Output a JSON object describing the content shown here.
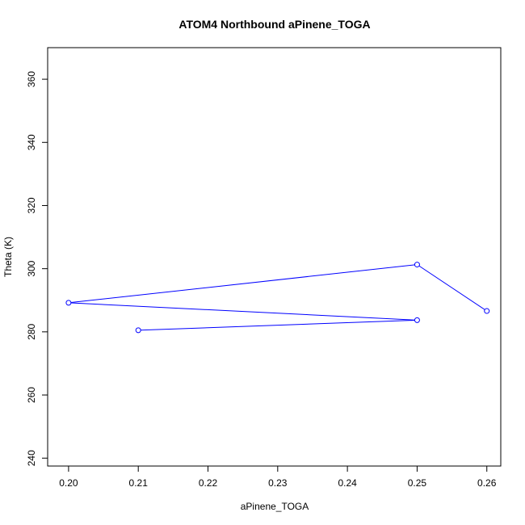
{
  "chart_data": {
    "type": "line",
    "title": "ATOM4 Northbound aPinene_TOGA",
    "xlabel": "aPinene_TOGA",
    "ylabel": "Theta (K)",
    "xlim": [
      0.197,
      0.262
    ],
    "ylim": [
      237.5,
      370.0
    ],
    "xticks": [
      "0.20",
      "0.21",
      "0.22",
      "0.23",
      "0.24",
      "0.25",
      "0.26"
    ],
    "yticks": [
      "240",
      "260",
      "280",
      "300",
      "320",
      "340",
      "360"
    ],
    "grid": false,
    "series": [
      {
        "color": "#0000ff",
        "marker": "open-circle",
        "x": [
          0.21,
          0.25,
          0.2,
          0.25,
          0.26
        ],
        "y": [
          280.5,
          283.7,
          289.2,
          301.3,
          286.6
        ]
      }
    ]
  }
}
